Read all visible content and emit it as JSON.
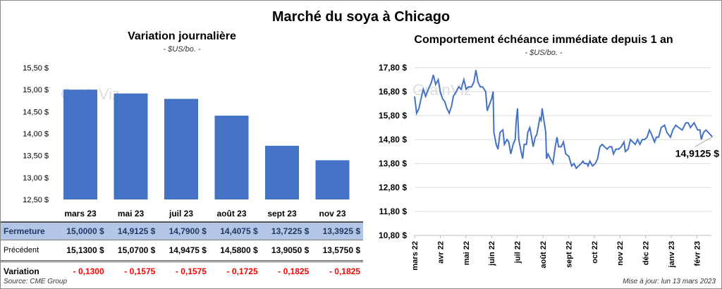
{
  "title": "Marché du soya à Chicago",
  "footer": {
    "source": "Source: CME Group",
    "updated": "Mise à jour: lun 13 mars 2023"
  },
  "watermark": "GrainViz",
  "chart_data": [
    {
      "type": "bar",
      "title": "Variation journalière",
      "subtitle": "- $US/bo. -",
      "categories": [
        "mars 23",
        "mai 23",
        "juil 23",
        "août 23",
        "sept 23",
        "nov 23"
      ],
      "values": [
        15.0,
        14.9125,
        14.79,
        14.4075,
        13.7225,
        13.3925
      ],
      "ylim": [
        12.5,
        15.5
      ],
      "yticks": [
        15.5,
        15.0,
        14.5,
        14.0,
        13.5,
        13.0,
        12.5
      ],
      "ytick_labels": [
        "15,50 $",
        "15,00 $",
        "14,50 $",
        "14,00 $",
        "13,50 $",
        "13,00 $",
        "12,50 $"
      ],
      "color": "#4472c4",
      "table": {
        "rows": [
          {
            "label": "Fermeture",
            "cells": [
              "15,0000  $",
              "14,9125  $",
              "14,7900  $",
              "14,4075  $",
              "13,7225  $",
              "13,3925  $"
            ]
          },
          {
            "label": "Précédent",
            "cells": [
              "15,1300  $",
              "15,0700  $",
              "14,9475  $",
              "14,5800  $",
              "13,9050  $",
              "13,5750  $"
            ]
          },
          {
            "label": "Variation",
            "cells": [
              "- 0,1300",
              "- 0,1575",
              "- 0,1575",
              "- 0,1725",
              "- 0,1825",
              "- 0,1825"
            ]
          }
        ]
      }
    },
    {
      "type": "line",
      "title": "Comportement  échéance immédiate depuis 1 an",
      "subtitle": "- $US/bo. -",
      "ylim": [
        10.8,
        17.8
      ],
      "yticks": [
        17.8,
        16.8,
        15.8,
        14.8,
        13.8,
        12.8,
        11.8,
        10.8
      ],
      "ytick_labels": [
        "17,80 $",
        "16,80 $",
        "15,80 $",
        "14,80 $",
        "13,80 $",
        "12,80 $",
        "11,80 $",
        "10,80 $"
      ],
      "xtick_labels": [
        "mars 22",
        "avr 22",
        "mai 22",
        "juin 22",
        "juil 22",
        "août 22",
        "sept 22",
        "oct 22",
        "nov 22",
        "déc 22",
        "janv 23",
        "févr 23"
      ],
      "x_unit": "months since mars 22",
      "last_label": "14,9125 $",
      "color": "#4472c4",
      "x": [
        0,
        0.08,
        0.17,
        0.25,
        0.34,
        0.43,
        0.54,
        0.66,
        0.73,
        0.82,
        0.92,
        1.0,
        1.09,
        1.17,
        1.26,
        1.35,
        1.44,
        1.51,
        1.62,
        1.72,
        1.81,
        1.92,
        2.01,
        2.1,
        2.22,
        2.31,
        2.39,
        2.47,
        2.56,
        2.65,
        2.77,
        2.83,
        2.93,
        3.0,
        3.06,
        3.09,
        3.18,
        3.25,
        3.33,
        3.44,
        3.5,
        3.6,
        3.67,
        3.75,
        3.84,
        3.92,
        3.96,
        4.01,
        4.06,
        4.15,
        4.21,
        4.27,
        4.36,
        4.41,
        4.49,
        4.56,
        4.62,
        4.7,
        4.76,
        4.88,
        4.93,
        4.97,
        5.04,
        5.11,
        5.14,
        5.2,
        5.29,
        5.39,
        5.48,
        5.55,
        5.61,
        5.71,
        5.8,
        5.89,
        6.01,
        6.12,
        6.21,
        6.3,
        6.39,
        6.49,
        6.56,
        6.62,
        6.72,
        6.76,
        6.83,
        6.93,
        7.04,
        7.13,
        7.22,
        7.31,
        7.4,
        7.5,
        7.59,
        7.68,
        7.75,
        7.84,
        7.95,
        8.05,
        8.16,
        8.21,
        8.32,
        8.41,
        8.5,
        8.6,
        8.69,
        8.78,
        8.87,
        8.96,
        9.06,
        9.15,
        9.24,
        9.35,
        9.42,
        9.51,
        9.61,
        9.74,
        9.83,
        9.97,
        10.06,
        10.18,
        10.29,
        10.43,
        10.57,
        10.66,
        10.75,
        10.89,
        11.03,
        11.12,
        11.17,
        11.26,
        11.35,
        11.44,
        11.53,
        11.6
      ],
      "y": [
        16.6,
        15.9,
        16.1,
        16.5,
        16.9,
        16.6,
        16.9,
        17.2,
        17.5,
        17.1,
        17.3,
        16.8,
        16.5,
        16.4,
        16.1,
        15.9,
        16.2,
        16.6,
        16.8,
        17.0,
        16.9,
        17.3,
        16.9,
        17.0,
        17.0,
        17.2,
        17.7,
        17.2,
        17.0,
        17.0,
        16.8,
        16.0,
        16.3,
        16.5,
        16.8,
        15.1,
        14.6,
        14.4,
        15.1,
        15.2,
        14.6,
        14.8,
        14.7,
        14.2,
        14.6,
        14.8,
        15.6,
        16.1,
        14.8,
        14.3,
        14.0,
        14.6,
        14.6,
        15.1,
        15.3,
        14.9,
        14.5,
        14.9,
        15.0,
        15.7,
        15.6,
        16.1,
        15.6,
        15.1,
        14.0,
        14.2,
        14.0,
        13.8,
        14.5,
        14.9,
        14.5,
        14.5,
        14.7,
        14.2,
        14.1,
        13.7,
        13.8,
        13.6,
        13.7,
        13.8,
        13.9,
        13.8,
        13.8,
        13.7,
        13.9,
        13.7,
        13.8,
        14.0,
        14.5,
        14.6,
        14.5,
        14.4,
        14.5,
        14.5,
        14.2,
        14.4,
        14.4,
        14.5,
        14.7,
        14.3,
        14.4,
        14.8,
        14.7,
        14.6,
        14.8,
        14.6,
        14.8,
        14.8,
        14.9,
        15.2,
        15.0,
        14.7,
        14.9,
        14.9,
        15.3,
        15.4,
        15.1,
        14.9,
        15.2,
        15.4,
        15.3,
        15.2,
        15.5,
        15.5,
        15.3,
        15.5,
        15.2,
        15.2,
        14.8,
        15.1,
        15.2,
        15.1,
        15.0,
        14.91
      ]
    }
  ]
}
